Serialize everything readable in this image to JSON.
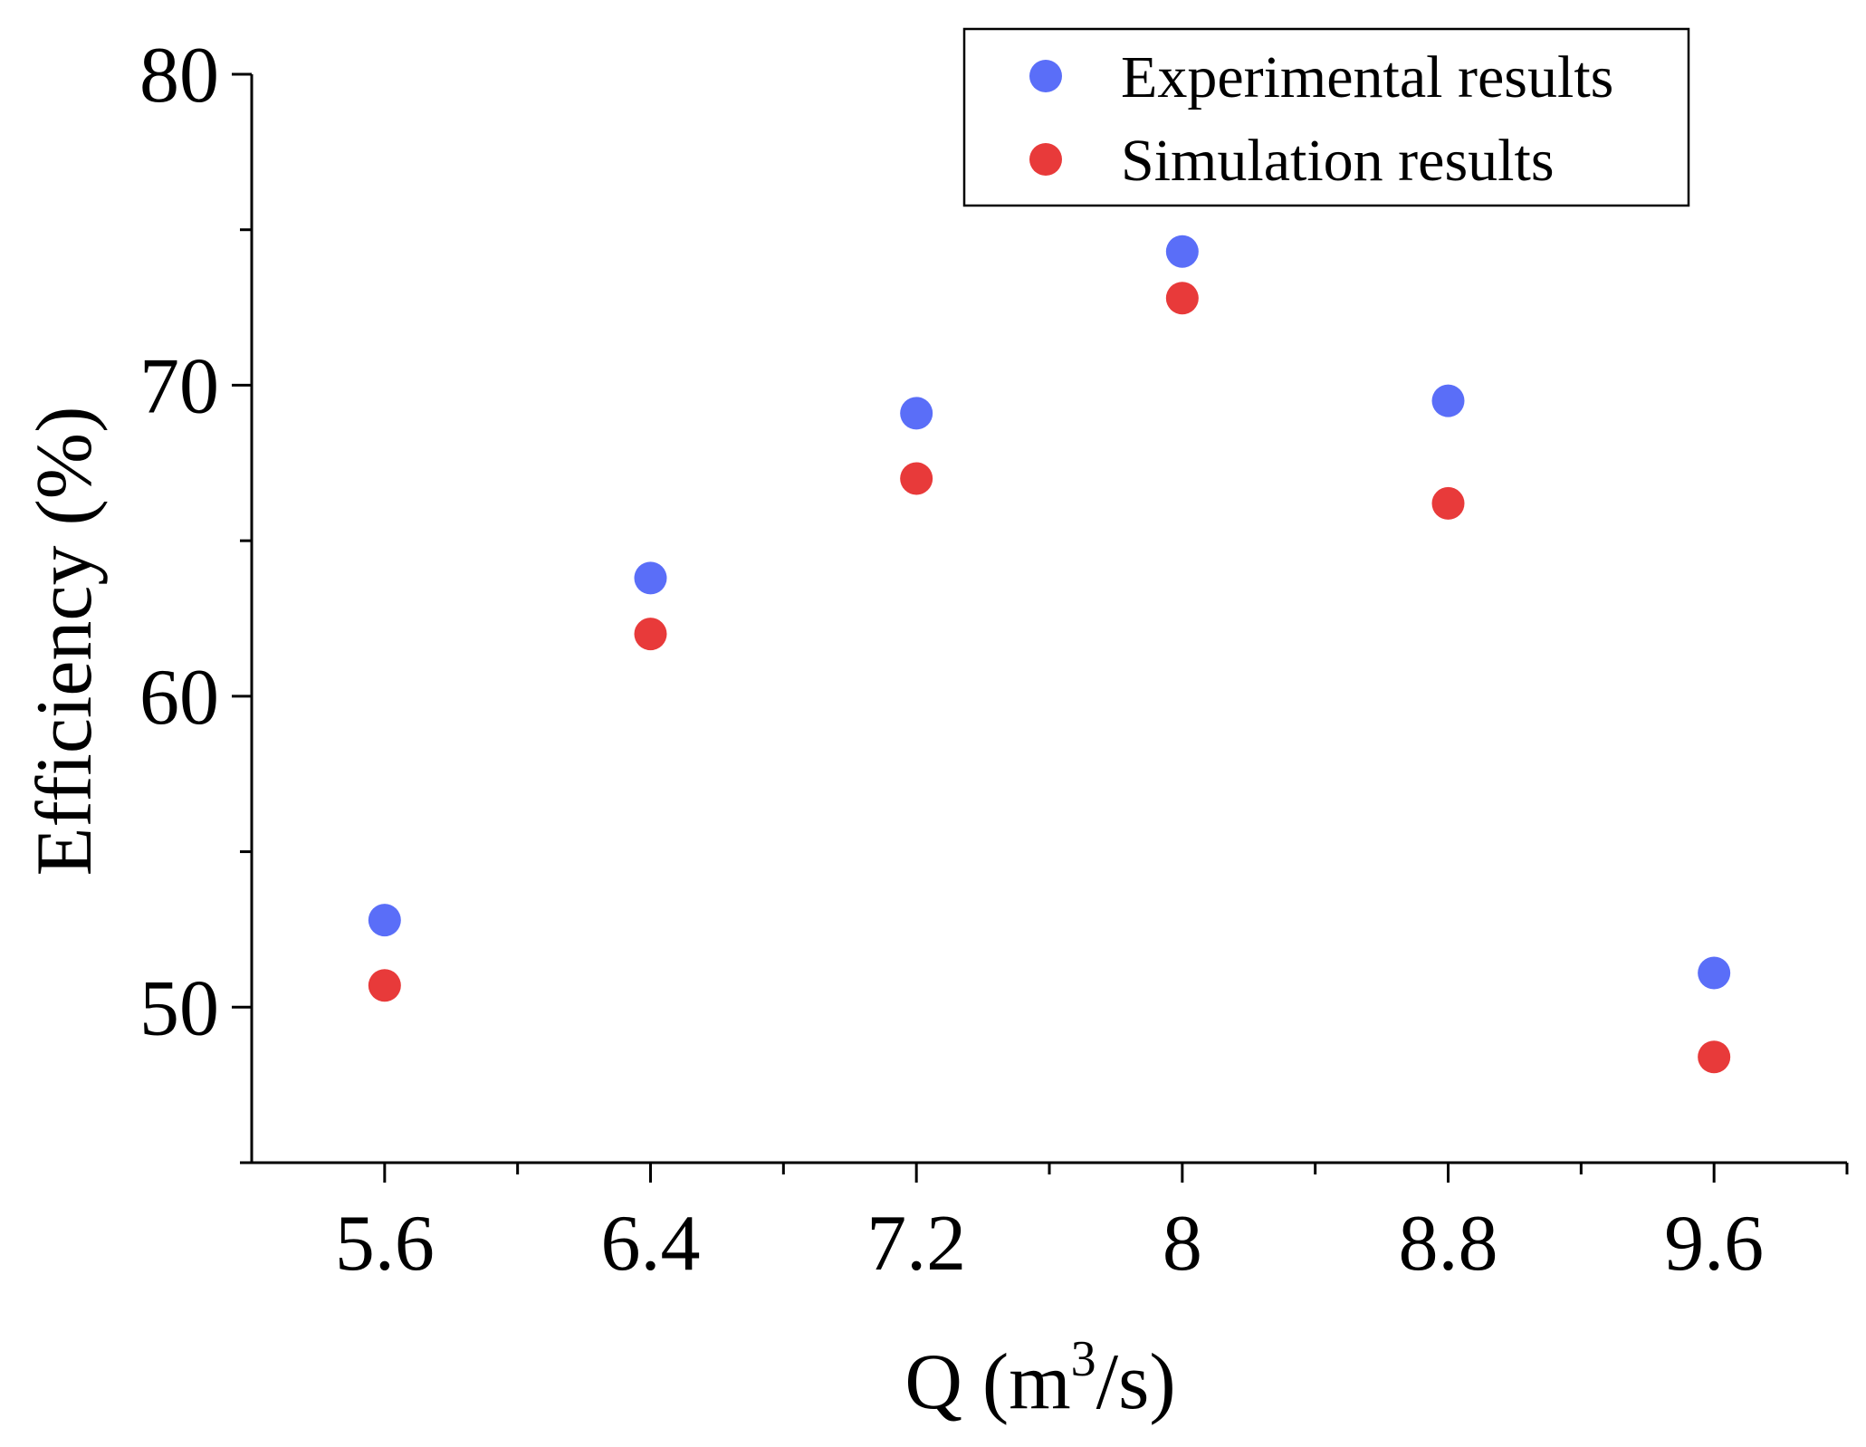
{
  "chart_data": {
    "type": "scatter",
    "title": "",
    "xlabel": "Q (m",
    "xlabel_superscript": "3",
    "xlabel_suffix": "/s)",
    "ylabel": "Efficiency (%)",
    "x": [
      5.6,
      6.4,
      7.2,
      8,
      8.8,
      9.6
    ],
    "x_tick_labels": [
      "5.6",
      "6.4",
      "7.2",
      "8",
      "8.8",
      "9.6"
    ],
    "y_ticks": [
      50,
      60,
      70,
      80
    ],
    "y_tick_labels": [
      "50",
      "60",
      "70",
      "80"
    ],
    "xlim": [
      5.2,
      10.0
    ],
    "ylim": [
      45,
      80
    ],
    "grid": false,
    "legend_position": "top-right",
    "series": [
      {
        "name": "Experimental results",
        "color": "#5a6ef8",
        "values": [
          52.8,
          63.8,
          69.1,
          74.3,
          69.5,
          51.1
        ]
      },
      {
        "name": "Simulation results",
        "color": "#e83a3a",
        "values": [
          50.7,
          62.0,
          67.0,
          72.8,
          66.2,
          48.4
        ]
      }
    ]
  }
}
